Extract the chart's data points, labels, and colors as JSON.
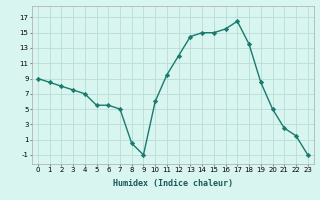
{
  "x": [
    0,
    1,
    2,
    3,
    4,
    5,
    6,
    7,
    8,
    9,
    10,
    11,
    12,
    13,
    14,
    15,
    16,
    17,
    18,
    19,
    20,
    21,
    22,
    23
  ],
  "y": [
    9,
    8.5,
    8,
    7.5,
    7,
    5.5,
    5.5,
    5,
    0.5,
    -1,
    6,
    9.5,
    12,
    14.5,
    15,
    15,
    15.5,
    16.5,
    13.5,
    8.5,
    5,
    2.5,
    1.5,
    -1
  ],
  "line_color": "#1a7a6e",
  "bg_color": "#d8f5f0",
  "grid_color": "#b8ddd8",
  "xlabel": "Humidex (Indice chaleur)",
  "xlim": [
    -0.5,
    23.5
  ],
  "ylim": [
    -2.2,
    18.5
  ],
  "yticks": [
    -1,
    1,
    3,
    5,
    7,
    9,
    11,
    13,
    15,
    17
  ],
  "xticks": [
    0,
    1,
    2,
    3,
    4,
    5,
    6,
    7,
    8,
    9,
    10,
    11,
    12,
    13,
    14,
    15,
    16,
    17,
    18,
    19,
    20,
    21,
    22,
    23
  ],
  "marker": "D",
  "markersize": 2.2,
  "linewidth": 1.0,
  "tick_fontsize": 5.0,
  "xlabel_fontsize": 6.0
}
